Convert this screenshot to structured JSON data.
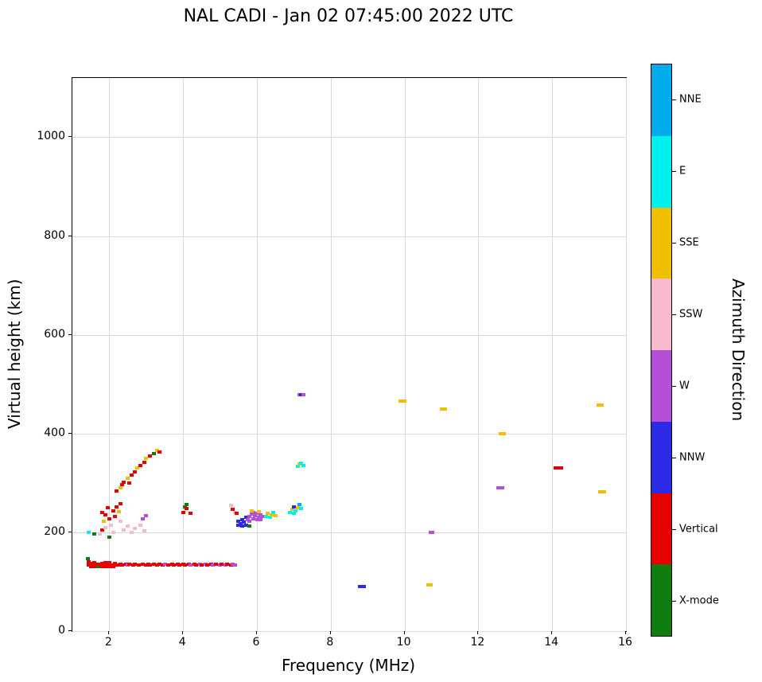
{
  "chart_data": {
    "type": "scatter",
    "title": "NAL CADI - Jan 02 07:45:00 2022 UTC",
    "xlabel": "Frequency (MHz)",
    "ylabel": "Virtual height (km)",
    "colorbar_label": "Azimuth Direction",
    "xlim": [
      1,
      16
    ],
    "ylim": [
      0,
      1120
    ],
    "xticks": [
      2,
      4,
      6,
      8,
      10,
      12,
      14,
      16
    ],
    "yticks": [
      0,
      200,
      400,
      600,
      800,
      1000
    ],
    "grid": true,
    "legend_position": "right-colorbar",
    "directions": [
      {
        "label": "NNE",
        "color": "#00ACEC"
      },
      {
        "label": "E",
        "color": "#00EFEF"
      },
      {
        "label": "SSE",
        "color": "#F0C000"
      },
      {
        "label": "SSW",
        "color": "#F9B9CD"
      },
      {
        "label": "W",
        "color": "#B44FD8"
      },
      {
        "label": "NNW",
        "color": "#2B2BE6"
      },
      {
        "label": "Vertical",
        "color": "#E60000"
      },
      {
        "label": "X-mode",
        "color": "#0E7C0E"
      }
    ],
    "points": [
      [
        1.45,
        133,
        "Vertical"
      ],
      [
        1.45,
        140,
        "Vertical"
      ],
      [
        1.5,
        130,
        "Vertical"
      ],
      [
        1.5,
        137,
        "Vertical"
      ],
      [
        1.55,
        134,
        "Vertical"
      ],
      [
        1.6,
        130,
        "Vertical"
      ],
      [
        1.6,
        138,
        "Vertical"
      ],
      [
        1.65,
        133,
        "Vertical"
      ],
      [
        1.7,
        136,
        "Vertical"
      ],
      [
        1.7,
        130,
        "X-mode"
      ],
      [
        1.75,
        133,
        "Vertical"
      ],
      [
        1.8,
        130,
        "Vertical"
      ],
      [
        1.8,
        137,
        "Vertical"
      ],
      [
        1.85,
        134,
        "Vertical"
      ],
      [
        1.9,
        131,
        "Vertical"
      ],
      [
        1.9,
        138,
        "Vertical"
      ],
      [
        1.95,
        134,
        "Vertical"
      ],
      [
        2.0,
        131,
        "Vertical"
      ],
      [
        2.0,
        138,
        "Vertical"
      ],
      [
        2.05,
        134,
        "Vertical"
      ],
      [
        2.1,
        131,
        "Vertical"
      ],
      [
        2.15,
        137,
        "Vertical"
      ],
      [
        2.2,
        133,
        "Vertical"
      ],
      [
        2.25,
        134,
        "Vertical"
      ],
      [
        2.3,
        136,
        "Vertical"
      ],
      [
        2.35,
        133,
        "Vertical"
      ],
      [
        2.45,
        135,
        "Vertical"
      ],
      [
        2.5,
        133,
        "W"
      ],
      [
        2.55,
        136,
        "Vertical"
      ],
      [
        2.65,
        134,
        "Vertical"
      ],
      [
        2.7,
        136,
        "Vertical"
      ],
      [
        2.8,
        134,
        "Vertical"
      ],
      [
        2.9,
        136,
        "Vertical"
      ],
      [
        3.0,
        134,
        "Vertical"
      ],
      [
        3.05,
        136,
        "Vertical"
      ],
      [
        3.1,
        134,
        "Vertical"
      ],
      [
        3.2,
        135,
        "Vertical"
      ],
      [
        3.3,
        134,
        "Vertical"
      ],
      [
        3.35,
        136,
        "Vertical"
      ],
      [
        3.45,
        134,
        "Vertical"
      ],
      [
        3.5,
        136,
        "W"
      ],
      [
        3.6,
        134,
        "Vertical"
      ],
      [
        3.7,
        135,
        "Vertical"
      ],
      [
        3.75,
        134,
        "Vertical"
      ],
      [
        3.85,
        136,
        "Vertical"
      ],
      [
        3.9,
        134,
        "Vertical"
      ],
      [
        4.0,
        135,
        "Vertical"
      ],
      [
        4.05,
        134,
        "Vertical"
      ],
      [
        4.15,
        136,
        "Vertical"
      ],
      [
        4.2,
        134,
        "W"
      ],
      [
        4.3,
        135,
        "Vertical"
      ],
      [
        4.35,
        134,
        "Vertical"
      ],
      [
        4.45,
        136,
        "W"
      ],
      [
        4.5,
        134,
        "Vertical"
      ],
      [
        4.6,
        135,
        "W"
      ],
      [
        4.65,
        134,
        "Vertical"
      ],
      [
        4.75,
        136,
        "Vertical"
      ],
      [
        4.8,
        134,
        "W"
      ],
      [
        4.9,
        135,
        "Vertical"
      ],
      [
        5.0,
        134,
        "W"
      ],
      [
        5.05,
        136,
        "Vertical"
      ],
      [
        5.15,
        134,
        "W"
      ],
      [
        5.2,
        135,
        "Vertical"
      ],
      [
        5.3,
        134,
        "Vertical"
      ],
      [
        5.35,
        135,
        "W"
      ],
      [
        5.4,
        134,
        "W"
      ],
      [
        1.42,
        146,
        "X-mode"
      ],
      [
        1.45,
        200,
        "E"
      ],
      [
        1.6,
        196,
        "X-mode"
      ],
      [
        2.0,
        190,
        "X-mode"
      ],
      [
        1.75,
        197,
        "SSW"
      ],
      [
        1.8,
        205,
        "Vertical"
      ],
      [
        1.8,
        240,
        "Vertical"
      ],
      [
        1.85,
        222,
        "SSE"
      ],
      [
        1.9,
        235,
        "Vertical"
      ],
      [
        1.9,
        210,
        "SSW"
      ],
      [
        1.95,
        250,
        "Vertical"
      ],
      [
        2.0,
        228,
        "Vertical"
      ],
      [
        2.05,
        215,
        "SSW"
      ],
      [
        2.1,
        243,
        "Vertical"
      ],
      [
        2.1,
        200,
        "SSW"
      ],
      [
        2.15,
        232,
        "Vertical"
      ],
      [
        2.2,
        252,
        "Vertical"
      ],
      [
        2.25,
        242,
        "SSE"
      ],
      [
        2.3,
        258,
        "Vertical"
      ],
      [
        2.3,
        222,
        "SSW"
      ],
      [
        2.2,
        283,
        "Vertical"
      ],
      [
        2.3,
        290,
        "SSE"
      ],
      [
        2.35,
        296,
        "Vertical"
      ],
      [
        2.4,
        302,
        "Vertical"
      ],
      [
        2.5,
        309,
        "SSE"
      ],
      [
        2.55,
        300,
        "Vertical"
      ],
      [
        2.6,
        316,
        "Vertical"
      ],
      [
        2.7,
        322,
        "Vertical"
      ],
      [
        2.75,
        330,
        "SSE"
      ],
      [
        2.85,
        336,
        "Vertical"
      ],
      [
        2.95,
        342,
        "Vertical"
      ],
      [
        3.0,
        349,
        "SSE"
      ],
      [
        3.1,
        355,
        "Vertical"
      ],
      [
        3.2,
        360,
        "X-mode"
      ],
      [
        3.3,
        366,
        "SSE"
      ],
      [
        3.35,
        362,
        "Vertical"
      ],
      [
        2.4,
        205,
        "SSW"
      ],
      [
        2.5,
        212,
        "SSW"
      ],
      [
        2.6,
        200,
        "SSW"
      ],
      [
        2.7,
        208,
        "SSW"
      ],
      [
        2.85,
        215,
        "SSW"
      ],
      [
        2.95,
        203,
        "SSW"
      ],
      [
        2.9,
        228,
        "W"
      ],
      [
        3.0,
        233,
        "W"
      ],
      [
        4.0,
        240,
        "Vertical"
      ],
      [
        4.05,
        252,
        "X-mode"
      ],
      [
        4.1,
        256,
        "X-mode"
      ],
      [
        4.1,
        248,
        "Vertical"
      ],
      [
        4.2,
        238,
        "Vertical"
      ],
      [
        5.3,
        255,
        "SSW"
      ],
      [
        5.35,
        247,
        "Vertical"
      ],
      [
        5.4,
        240,
        "SSW"
      ],
      [
        5.45,
        238,
        "Vertical"
      ],
      [
        5.5,
        214,
        "NNW"
      ],
      [
        5.5,
        222,
        "NNW"
      ],
      [
        5.55,
        218,
        "NNW"
      ],
      [
        5.6,
        212,
        "NNW"
      ],
      [
        5.6,
        226,
        "NNW"
      ],
      [
        5.65,
        220,
        "NNW"
      ],
      [
        5.7,
        215,
        "NNW"
      ],
      [
        5.7,
        230,
        "NNW"
      ],
      [
        5.8,
        213,
        "X-mode"
      ],
      [
        5.75,
        226,
        "W"
      ],
      [
        5.8,
        232,
        "W"
      ],
      [
        5.8,
        222,
        "W"
      ],
      [
        5.85,
        237,
        "W"
      ],
      [
        5.9,
        228,
        "W"
      ],
      [
        5.9,
        240,
        "W"
      ],
      [
        5.95,
        233,
        "W"
      ],
      [
        6.0,
        226,
        "W"
      ],
      [
        6.0,
        238,
        "W"
      ],
      [
        6.05,
        231,
        "W"
      ],
      [
        6.1,
        236,
        "W"
      ],
      [
        6.1,
        226,
        "W"
      ],
      [
        6.15,
        232,
        "W"
      ],
      [
        5.85,
        243,
        "SSE"
      ],
      [
        6.05,
        242,
        "SSE"
      ],
      [
        6.25,
        232,
        "E"
      ],
      [
        6.3,
        238,
        "SSE"
      ],
      [
        6.35,
        230,
        "E"
      ],
      [
        6.4,
        236,
        "SSE"
      ],
      [
        6.45,
        240,
        "E"
      ],
      [
        6.5,
        234,
        "SSE"
      ],
      [
        6.9,
        240,
        "E"
      ],
      [
        6.95,
        246,
        "SSE"
      ],
      [
        7.0,
        238,
        "E"
      ],
      [
        7.0,
        252,
        "NNW"
      ],
      [
        7.05,
        244,
        "E"
      ],
      [
        7.1,
        250,
        "SSE"
      ],
      [
        7.15,
        256,
        "NNE"
      ],
      [
        7.2,
        248,
        "E"
      ],
      [
        7.1,
        334,
        "E"
      ],
      [
        7.15,
        338,
        "SSE"
      ],
      [
        7.2,
        340,
        "E"
      ],
      [
        7.25,
        336,
        "E"
      ],
      [
        7.15,
        478,
        "W"
      ],
      [
        7.2,
        479,
        "NNW"
      ],
      [
        7.25,
        478,
        "W"
      ],
      [
        9.9,
        466,
        "SSE"
      ],
      [
        9.95,
        466,
        "SSE"
      ],
      [
        10.0,
        466,
        "SSE"
      ],
      [
        11.0,
        450,
        "SSE"
      ],
      [
        11.05,
        450,
        "SSE"
      ],
      [
        11.1,
        450,
        "SSE"
      ],
      [
        12.6,
        400,
        "SSE"
      ],
      [
        12.65,
        400,
        "SSE"
      ],
      [
        12.7,
        400,
        "SSE"
      ],
      [
        12.55,
        290,
        "W"
      ],
      [
        12.6,
        290,
        "W"
      ],
      [
        12.65,
        290,
        "W"
      ],
      [
        14.1,
        330,
        "Vertical"
      ],
      [
        14.15,
        330,
        "Vertical"
      ],
      [
        14.2,
        330,
        "Vertical"
      ],
      [
        14.25,
        330,
        "Vertical"
      ],
      [
        15.25,
        457,
        "SSE"
      ],
      [
        15.3,
        457,
        "SSE"
      ],
      [
        15.35,
        457,
        "SSE"
      ],
      [
        15.3,
        282,
        "SSE"
      ],
      [
        15.35,
        282,
        "SSE"
      ],
      [
        15.4,
        282,
        "SSE"
      ],
      [
        10.7,
        200,
        "W"
      ],
      [
        10.75,
        200,
        "W"
      ],
      [
        10.65,
        93,
        "SSE"
      ],
      [
        10.7,
        93,
        "SSE"
      ],
      [
        8.8,
        90,
        "NNW"
      ],
      [
        8.85,
        90,
        "NNW"
      ],
      [
        8.9,
        90,
        "NNW"
      ]
    ]
  }
}
